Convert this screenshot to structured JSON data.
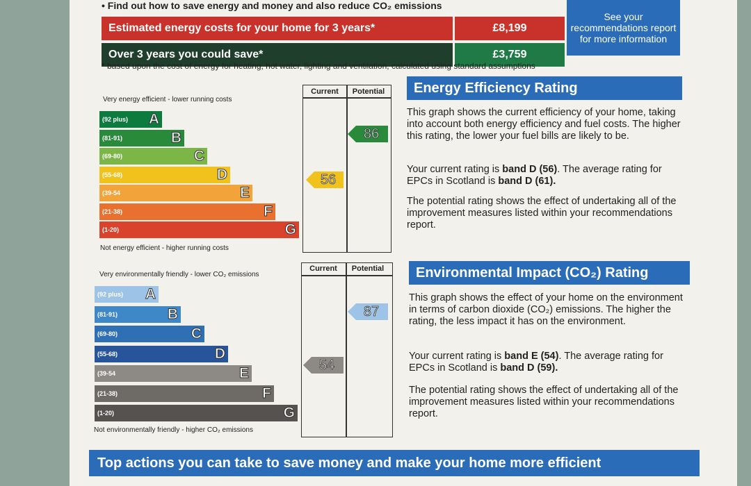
{
  "intro": {
    "bullet_text": "• Find out how to save energy and money and also reduce CO₂ emissions"
  },
  "costs": {
    "estimated_label": "Estimated energy costs for your home for 3 years*",
    "estimated_value": "£8,199",
    "save_label": "Over 3 years you could save*",
    "save_value": "£3,759",
    "see_recs": "See your recommendations report for more information",
    "footnote": "* based upon the cost of energy for heating, hot water, lighting and ventilation, calculated using standard assumptions"
  },
  "energy_chart": {
    "top_caption": "Very energy efficient - lower running costs",
    "bottom_caption": "Not energy efficient - higher running costs",
    "col_current": "Current",
    "col_potential": "Potential",
    "current": "56",
    "potential": "86",
    "bands": [
      {
        "letter": "A",
        "range": "(92 plus)",
        "color": "#0d7a3e"
      },
      {
        "letter": "B",
        "range": "(81-91)",
        "color": "#2a8a3b"
      },
      {
        "letter": "C",
        "range": "(69-80)",
        "color": "#7bb646"
      },
      {
        "letter": "D",
        "range": "(55-68)",
        "color": "#f1c21b"
      },
      {
        "letter": "E",
        "range": "(39-54",
        "color": "#f2a33a"
      },
      {
        "letter": "F",
        "range": "(21-38)",
        "color": "#e8712f"
      },
      {
        "letter": "G",
        "range": "(1-20)",
        "color": "#d9432c"
      }
    ]
  },
  "energy_text": {
    "heading": "Energy Efficiency Rating",
    "p1": "This graph shows the current efficiency of your home, taking into account both energy efficiency and fuel costs. The higher this rating, the lower your fuel bills are likely to be.",
    "p2_pre": "Your current rating is ",
    "p2_b1": "band D (56)",
    "p2_mid": ". The average rating for EPCs in Scotland is ",
    "p2_b2": "band D (61).",
    "p3": "The potential rating shows the effect of undertaking all of the improvement measures listed within your recommendations report."
  },
  "env_chart": {
    "top_caption": "Very environmentally friendly - lower CO₂ emissions",
    "bottom_caption": "Not environmentally friendly - higher CO₂ emissions",
    "col_current": "Current",
    "col_potential": "Potential",
    "current": "54",
    "potential": "87",
    "bands": [
      {
        "letter": "A",
        "range": "(92 plus)",
        "color": "#9dc3e6"
      },
      {
        "letter": "B",
        "range": "(81-91)",
        "color": "#3f88c8"
      },
      {
        "letter": "C",
        "range": "(69-80)",
        "color": "#2f6fb3"
      },
      {
        "letter": "D",
        "range": "(55-68)",
        "color": "#28559a"
      },
      {
        "letter": "E",
        "range": "(39-54",
        "color": "#8d8a85"
      },
      {
        "letter": "F",
        "range": "(21-38)",
        "color": "#6e6b67"
      },
      {
        "letter": "G",
        "range": "(1-20)",
        "color": "#55524f"
      }
    ]
  },
  "env_text": {
    "heading": "Environmental Impact (CO₂) Rating",
    "p1": "This graph shows the effect of your home on the environment in terms of carbon dioxide (CO₂) emissions. The higher the rating, the less impact it has on the environment.",
    "p2_pre": "Your current rating is ",
    "p2_b1": "band E (54)",
    "p2_mid": ". The average rating for EPCs in Scotland is ",
    "p2_b2": "band D (59).",
    "p3": "The potential rating shows the effect of undertaking all of the improvement measures listed within your recommendations report."
  },
  "footer": {
    "top_actions": "Top actions you can take to save money and make your home more efficient"
  }
}
